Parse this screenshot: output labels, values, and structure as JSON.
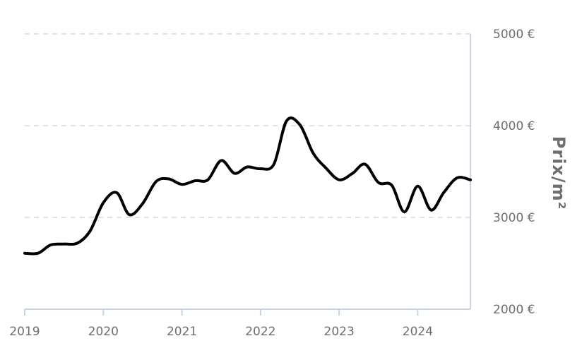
{
  "chart_data": {
    "type": "line",
    "title": "",
    "xlabel": "",
    "ylabel": "Prix/m²",
    "grid": true,
    "ylim": [
      2000,
      5000
    ],
    "xlim": [
      2019.0,
      2024.67
    ],
    "y_ticks": [
      {
        "value": 2000,
        "label": "2000 €"
      },
      {
        "value": 3000,
        "label": "3000 €"
      },
      {
        "value": 4000,
        "label": "4000 €"
      },
      {
        "value": 5000,
        "label": "5000 €"
      }
    ],
    "x_ticks": [
      {
        "value": 2019,
        "label": "2019"
      },
      {
        "value": 2020,
        "label": "2020"
      },
      {
        "value": 2021,
        "label": "2021"
      },
      {
        "value": 2022,
        "label": "2022"
      },
      {
        "value": 2023,
        "label": "2023"
      },
      {
        "value": 2024,
        "label": "2024"
      }
    ],
    "series": [
      {
        "color": "#000000",
        "points": [
          [
            2019.0,
            2610
          ],
          [
            2019.17,
            2610
          ],
          [
            2019.33,
            2700
          ],
          [
            2019.5,
            2710
          ],
          [
            2019.67,
            2720
          ],
          [
            2019.83,
            2850
          ],
          [
            2020.0,
            3160
          ],
          [
            2020.17,
            3270
          ],
          [
            2020.33,
            3030
          ],
          [
            2020.5,
            3150
          ],
          [
            2020.67,
            3390
          ],
          [
            2020.83,
            3420
          ],
          [
            2021.0,
            3360
          ],
          [
            2021.17,
            3400
          ],
          [
            2021.33,
            3410
          ],
          [
            2021.5,
            3620
          ],
          [
            2021.67,
            3480
          ],
          [
            2021.83,
            3550
          ],
          [
            2022.0,
            3530
          ],
          [
            2022.17,
            3580
          ],
          [
            2022.33,
            4050
          ],
          [
            2022.5,
            4010
          ],
          [
            2022.67,
            3700
          ],
          [
            2022.83,
            3540
          ],
          [
            2023.0,
            3410
          ],
          [
            2023.17,
            3480
          ],
          [
            2023.33,
            3580
          ],
          [
            2023.5,
            3380
          ],
          [
            2023.67,
            3350
          ],
          [
            2023.83,
            3060
          ],
          [
            2024.0,
            3340
          ],
          [
            2024.17,
            3080
          ],
          [
            2024.33,
            3270
          ],
          [
            2024.5,
            3430
          ],
          [
            2024.67,
            3410
          ]
        ]
      }
    ]
  }
}
